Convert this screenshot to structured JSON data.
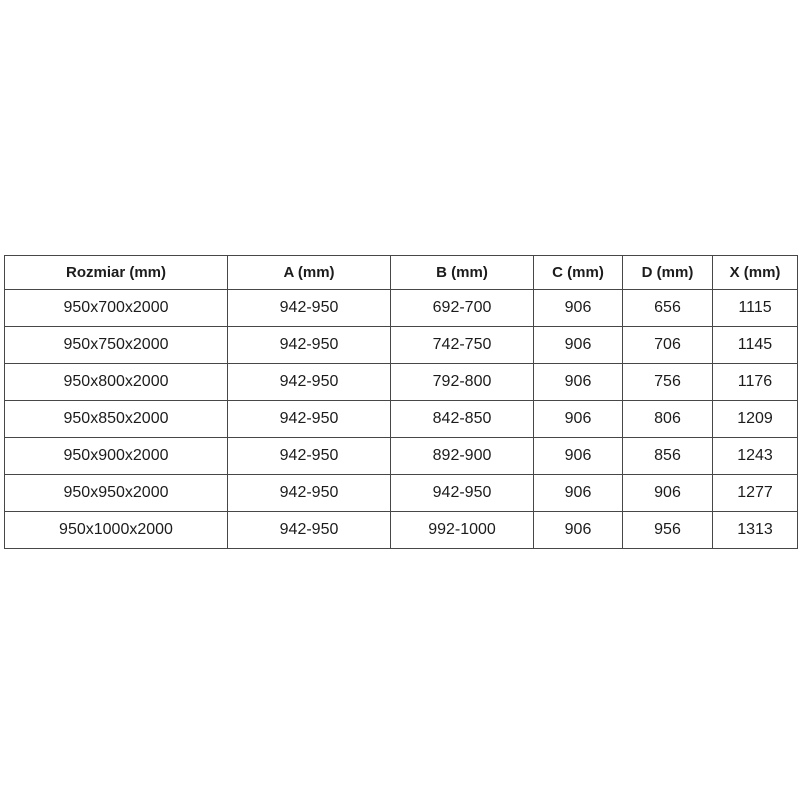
{
  "table": {
    "headers": [
      "Rozmiar (mm)",
      "A (mm)",
      "B (mm)",
      "C (mm)",
      "D (mm)",
      "X (mm)"
    ],
    "rows": [
      [
        "950x700x2000",
        "942-950",
        "692-700",
        "906",
        "656",
        "1115"
      ],
      [
        "950x750x2000",
        "942-950",
        "742-750",
        "906",
        "706",
        "1145"
      ],
      [
        "950x800x2000",
        "942-950",
        "792-800",
        "906",
        "756",
        "1176"
      ],
      [
        "950x850x2000",
        "942-950",
        "842-850",
        "906",
        "806",
        "1209"
      ],
      [
        "950x900x2000",
        "942-950",
        "892-900",
        "906",
        "856",
        "1243"
      ],
      [
        "950x950x2000",
        "942-950",
        "942-950",
        "906",
        "906",
        "1277"
      ],
      [
        "950x1000x2000",
        "942-950",
        "992-1000",
        "906",
        "956",
        "1313"
      ]
    ]
  },
  "colors": {
    "border": "#474747",
    "text": "#1c1c1c",
    "background": "#ffffff"
  }
}
